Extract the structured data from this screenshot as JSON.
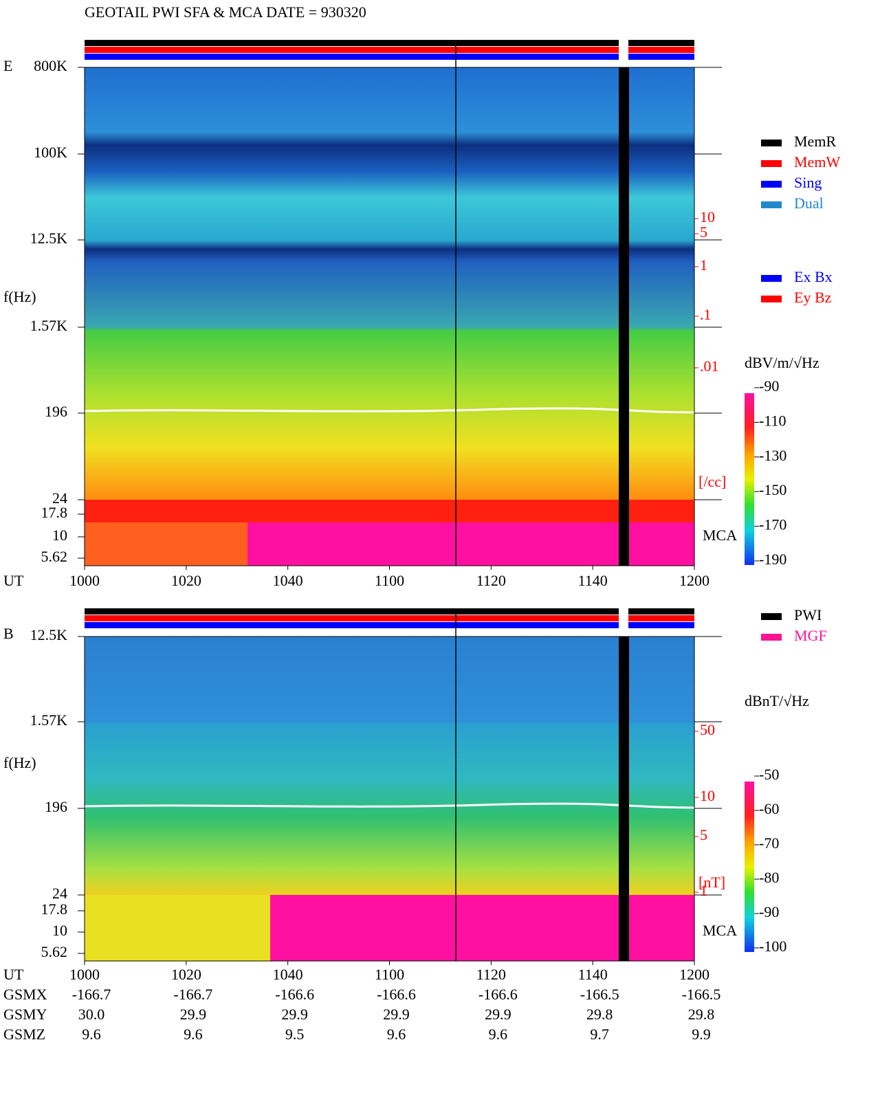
{
  "title": "GEOTAIL   PWI SFA & MCA   DATE = 930320",
  "panels": [
    {
      "label": "E",
      "y_axis_label": "f(Hz)",
      "freq_ticks": [
        "800K",
        "100K",
        "12.5K",
        "1.57K",
        "196",
        "24",
        "17.8",
        "10",
        "5.62"
      ],
      "mca_label": "MCA",
      "right_ticks": [
        "10",
        "5",
        "1",
        ".1",
        ".01"
      ],
      "right_unit": "[/cc]",
      "colorbar_unit": "dBV/m/√Hz",
      "colorbar_ticks": [
        "-90",
        "-110",
        "-130",
        "-150",
        "-170",
        "-190"
      ],
      "time_label": "UT"
    },
    {
      "label": "B",
      "y_axis_label": "f(Hz)",
      "freq_ticks": [
        "12.5K",
        "1.57K",
        "196",
        "24",
        "17.8",
        "10",
        "5.62"
      ],
      "mca_label": "MCA",
      "right_ticks": [
        "50",
        "10",
        "5",
        "1"
      ],
      "right_unit": "[nT]",
      "colorbar_unit": "dBnT/√Hz",
      "colorbar_ticks": [
        "-50",
        "-60",
        "-70",
        "-80",
        "-90",
        "-100"
      ],
      "time_label": "UT"
    }
  ],
  "time_ticks": [
    "1000",
    "1020",
    "1040",
    "1100",
    "1120",
    "1140",
    "1200"
  ],
  "legend_mode": [
    {
      "name": "MemR",
      "color": "#000000"
    },
    {
      "name": "MemW",
      "color": "#ff0000"
    },
    {
      "name": "Sing",
      "color": "#0000ff"
    },
    {
      "name": "Dual",
      "color": "#2288cc"
    }
  ],
  "legend_component": [
    {
      "name": "Ex Bx",
      "color": "#0000ff"
    },
    {
      "name": "Ey Bz",
      "color": "#ff0000"
    }
  ],
  "legend_source": [
    {
      "name": "PWI",
      "color": "#000000"
    },
    {
      "name": "MGF",
      "color": "#ff1493"
    }
  ],
  "orbit": [
    {
      "label": "GSMX",
      "values": [
        "-166.7",
        "-166.7",
        "-166.6",
        "-166.6",
        "-166.6",
        "-166.5",
        "-166.5"
      ]
    },
    {
      "label": "GSMY",
      "values": [
        "30.0",
        "29.9",
        "29.9",
        "29.9",
        "29.9",
        "29.8",
        "29.8"
      ]
    },
    {
      "label": "GSMZ",
      "values": [
        "9.6",
        "9.6",
        "9.5",
        "9.6",
        "9.6",
        "9.7",
        "9.9"
      ]
    }
  ]
}
